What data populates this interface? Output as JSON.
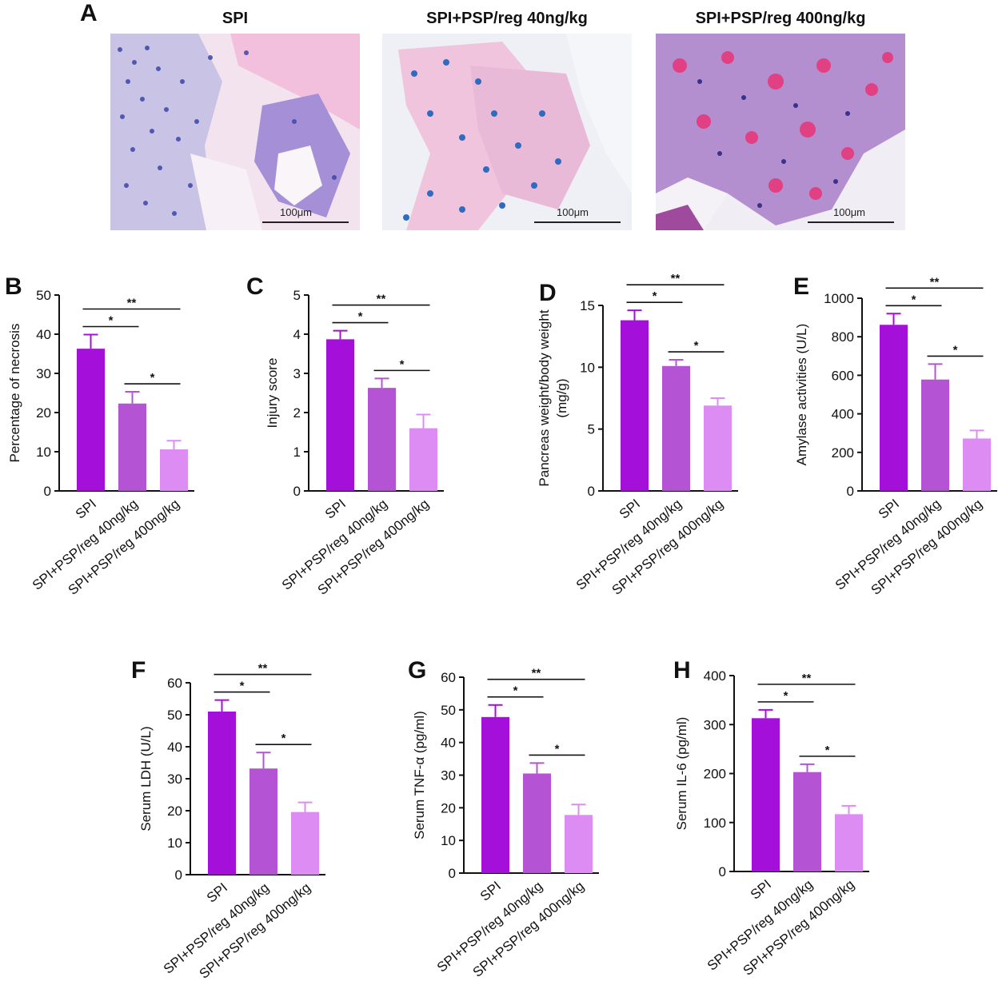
{
  "panel_A": {
    "letter": "A",
    "images": [
      {
        "title": "SPI",
        "scale_bar": "100μm"
      },
      {
        "title": "SPI+PSP/reg 40ng/kg",
        "scale_bar": "100μm"
      },
      {
        "title": "SPI+PSP/reg 400ng/kg",
        "scale_bar": "100μm"
      }
    ]
  },
  "colors": {
    "SPI": "#a40fd9",
    "low": "#b454d5",
    "high": "#dd8cf3"
  },
  "chart_data": [
    {
      "type": "bar",
      "panel": "B",
      "ylabel": "Percentage of necrosis",
      "categories": [
        "SPI",
        "SPI+PSP/reg 40ng/kg",
        "SPI+PSP/reg 400ng/kg"
      ],
      "values": [
        36.3,
        22.3,
        10.6
      ],
      "errors": [
        3.6,
        3.0,
        2.2
      ],
      "ylim": [
        0,
        50
      ],
      "yticks": [
        0,
        10,
        20,
        30,
        40,
        50
      ],
      "significance": [
        {
          "from": 0,
          "to": 1,
          "label": "*"
        },
        {
          "from": 1,
          "to": 2,
          "label": "*"
        },
        {
          "from": 0,
          "to": 2,
          "label": "**"
        }
      ]
    },
    {
      "type": "bar",
      "panel": "C",
      "ylabel": "Injury score",
      "categories": [
        "SPI",
        "SPI+PSP/reg 40ng/kg",
        "SPI+PSP/reg 400ng/kg"
      ],
      "values": [
        3.87,
        2.63,
        1.6
      ],
      "errors": [
        0.22,
        0.24,
        0.35
      ],
      "ylim": [
        0,
        5
      ],
      "yticks": [
        0,
        1,
        2,
        3,
        4,
        5
      ],
      "significance": [
        {
          "from": 0,
          "to": 1,
          "label": "*"
        },
        {
          "from": 1,
          "to": 2,
          "label": "*"
        },
        {
          "from": 0,
          "to": 2,
          "label": "**"
        }
      ]
    },
    {
      "type": "bar",
      "panel": "D",
      "ylabel": "Pancreas weight/body weight (mg/g)",
      "categories": [
        "SPI",
        "SPI+PSP/reg 40ng/kg",
        "SPI+PSP/reg 400ng/kg"
      ],
      "values": [
        13.8,
        10.1,
        6.9
      ],
      "errors": [
        0.8,
        0.5,
        0.6
      ],
      "ylim": [
        0,
        15
      ],
      "yticks": [
        0,
        5,
        10,
        15
      ],
      "significance": [
        {
          "from": 0,
          "to": 1,
          "label": "*"
        },
        {
          "from": 1,
          "to": 2,
          "label": "*"
        },
        {
          "from": 0,
          "to": 2,
          "label": "**"
        }
      ]
    },
    {
      "type": "bar",
      "panel": "E",
      "ylabel": "Amylase activities (U/L)",
      "categories": [
        "SPI",
        "SPI+PSP/reg 40ng/kg",
        "SPI+PSP/reg 400ng/kg"
      ],
      "values": [
        862,
        578,
        272
      ],
      "errors": [
        58,
        80,
        42
      ],
      "ylim": [
        0,
        1000
      ],
      "yticks": [
        0,
        200,
        400,
        600,
        800,
        1000
      ],
      "significance": [
        {
          "from": 0,
          "to": 1,
          "label": "*"
        },
        {
          "from": 1,
          "to": 2,
          "label": "*"
        },
        {
          "from": 0,
          "to": 2,
          "label": "**"
        }
      ]
    },
    {
      "type": "bar",
      "panel": "F",
      "ylabel": "Serum LDH (U/L)",
      "categories": [
        "SPI",
        "SPI+PSP/reg 40ng/kg",
        "SPI+PSP/reg 400ng/kg"
      ],
      "values": [
        51,
        33.2,
        19.6
      ],
      "errors": [
        3.6,
        5.0,
        3.0
      ],
      "ylim": [
        0,
        60
      ],
      "yticks": [
        0,
        10,
        20,
        30,
        40,
        50,
        60
      ],
      "significance": [
        {
          "from": 0,
          "to": 1,
          "label": "*"
        },
        {
          "from": 1,
          "to": 2,
          "label": "*"
        },
        {
          "from": 0,
          "to": 2,
          "label": "**"
        }
      ]
    },
    {
      "type": "bar",
      "panel": "G",
      "ylabel": "Serum TNF-α (pg/ml)",
      "categories": [
        "SPI",
        "SPI+PSP/reg 40ng/kg",
        "SPI+PSP/reg 400ng/kg"
      ],
      "values": [
        47.8,
        30.5,
        17.8
      ],
      "errors": [
        3.7,
        3.2,
        3.2
      ],
      "ylim": [
        0,
        60
      ],
      "yticks": [
        0,
        10,
        20,
        30,
        40,
        50,
        60
      ],
      "significance": [
        {
          "from": 0,
          "to": 1,
          "label": "*"
        },
        {
          "from": 1,
          "to": 2,
          "label": "*"
        },
        {
          "from": 0,
          "to": 2,
          "label": "**"
        }
      ]
    },
    {
      "type": "bar",
      "panel": "H",
      "ylabel": "Serum IL-6 (pg/ml)",
      "categories": [
        "SPI",
        "SPI+PSP/reg 40ng/kg",
        "SPI+PSP/reg 400ng/kg"
      ],
      "values": [
        313,
        203,
        117
      ],
      "errors": [
        17,
        16,
        17
      ],
      "ylim": [
        0,
        400
      ],
      "yticks": [
        0,
        100,
        200,
        300,
        400
      ],
      "significance": [
        {
          "from": 0,
          "to": 1,
          "label": "*"
        },
        {
          "from": 1,
          "to": 2,
          "label": "*"
        },
        {
          "from": 0,
          "to": 2,
          "label": "**"
        }
      ]
    }
  ]
}
